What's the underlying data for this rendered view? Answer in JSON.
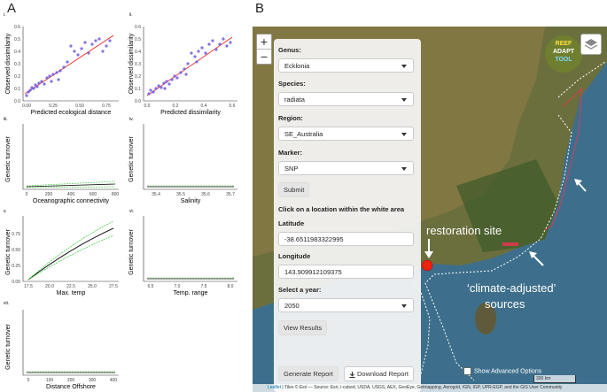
{
  "panel_a": {
    "letter": "A",
    "plots": [
      {
        "roman": "i.",
        "ylabel": "Observed dissimilarity",
        "xlabel": "Predicted ecological distance",
        "xticks": [
          "0.00",
          "0.25",
          "0.50",
          "0.75"
        ],
        "yticks": [
          "0.0",
          "0.1",
          "0.2",
          "0.3",
          "0.4",
          "0.5",
          "0.6"
        ]
      },
      {
        "roman": "ii.",
        "ylabel": "Observed dissimilarity",
        "xlabel": "Predicted dissimilarity",
        "xticks": [
          "0.0",
          "0.2",
          "0.4",
          "0.6"
        ],
        "yticks": [
          "0.0",
          "0.1",
          "0.2",
          "0.3",
          "0.4",
          "0.5",
          "0.6"
        ]
      },
      {
        "roman": "iii.",
        "ylabel": "Genetic turnover",
        "xlabel": "Oceanographic connectivity",
        "xticks": [
          "0",
          "200",
          "400",
          "600",
          "800"
        ],
        "yticks": []
      },
      {
        "roman": "iv.",
        "ylabel": "Genetic turnover",
        "xlabel": "Salinity",
        "xticks": [
          "35.4",
          "35.5",
          "35.6",
          "35.7"
        ],
        "yticks": []
      },
      {
        "roman": "v.",
        "ylabel": "Genetic turnover",
        "xlabel": "Max. temp",
        "xticks": [
          "17.5",
          "20.0",
          "22.5",
          "25.0",
          "27.5"
        ],
        "yticks": [
          "0.00",
          "0.25",
          "0.50",
          "0.75"
        ]
      },
      {
        "roman": "vi.",
        "ylabel": "Genetic turnover",
        "xlabel": "Temp. range",
        "xticks": [
          "6.5",
          "7.0",
          "7.5",
          "8.0"
        ],
        "yticks": []
      },
      {
        "roman": "vii.",
        "ylabel": "Genetic turnover",
        "xlabel": "Distance Offshore",
        "xticks": [
          "0",
          "100",
          "200",
          "300",
          "400"
        ],
        "yticks": []
      }
    ]
  },
  "panel_b": {
    "letter": "B",
    "zoom_in": "+",
    "zoom_out": "−",
    "logo": {
      "line1": "REEF",
      "line2": "ADAPT",
      "line3": "TOOL"
    },
    "fields": {
      "genus_label": "Genus:",
      "genus_value": "Ecklonia",
      "species_label": "Species:",
      "species_value": "radiata",
      "region_label": "Region:",
      "region_value": "SE_Australia",
      "marker_label": "Marker:",
      "marker_value": "SNP",
      "submit": "Submit",
      "click_hint": "Click on a location within the white area",
      "latitude_label": "Latitude",
      "latitude_value": "-38.6511983322995",
      "longitude_label": "Longitude",
      "longitude_value": "143.909912109375",
      "year_label": "Select a year:",
      "year_value": "2050",
      "view_results": "View Results",
      "generate_report": "Generate Report",
      "download_report": "Download Report"
    },
    "show_advanced": "Show Advanced Options",
    "scale_label": "300 km",
    "attribution_leaflet": "Leaflet",
    "attribution_text": " | Tiles © Esri — Source: Esri, i-cubed, USDA, USGS, AEX, GeoEye, Getmapping, Aerogrid, IGN, IGP, UPR-EGP, and the GIS User Community",
    "annotation_restoration": "restoration site",
    "annotation_sources_1": "‘climate-adjusted’",
    "annotation_sources_2": "sources"
  }
}
